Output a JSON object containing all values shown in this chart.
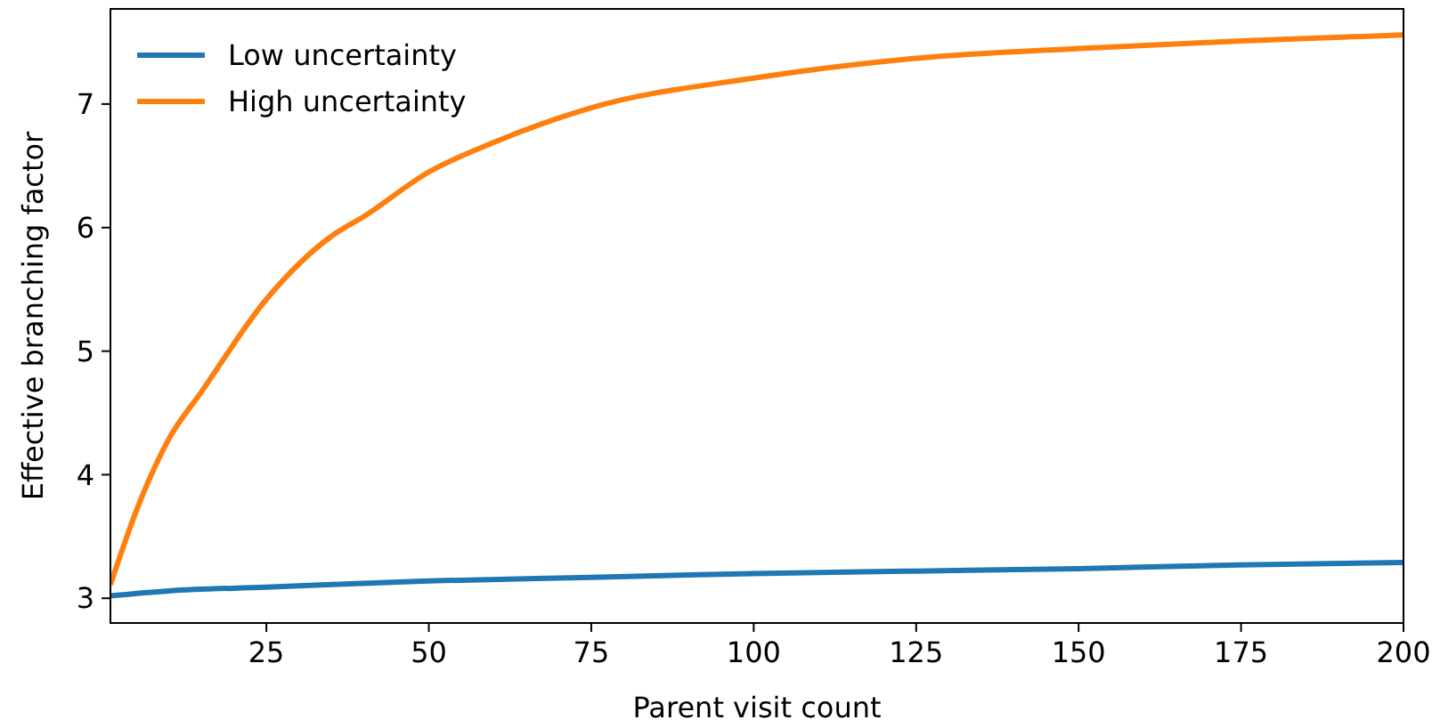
{
  "chart_data": {
    "type": "line",
    "xlabel": "Parent visit count",
    "ylabel": "Effective branching factor",
    "xlim": [
      1,
      200
    ],
    "ylim": [
      2.8,
      7.77
    ],
    "xticks": [
      25,
      50,
      75,
      100,
      125,
      150,
      175,
      200
    ],
    "yticks": [
      3,
      4,
      5,
      6,
      7
    ],
    "grid": false,
    "legend": "top left",
    "marker": "none",
    "line_style": "solid",
    "series": [
      {
        "name": "Low uncertainty",
        "color": "#1f77b4",
        "x": [
          1,
          10,
          25,
          50,
          75,
          100,
          125,
          150,
          175,
          200
        ],
        "values": [
          3.02,
          3.06,
          3.09,
          3.14,
          3.17,
          3.2,
          3.22,
          3.24,
          3.27,
          3.29
        ]
      },
      {
        "name": "High uncertainty",
        "color": "#ff7f0e",
        "x": [
          1,
          5,
          10,
          15,
          25,
          35,
          40,
          50,
          60,
          75,
          100,
          125,
          150,
          175,
          200
        ],
        "values": [
          3.11,
          3.71,
          4.29,
          4.67,
          5.42,
          5.93,
          6.09,
          6.45,
          6.69,
          6.97,
          7.21,
          7.37,
          7.45,
          7.51,
          7.56
        ]
      }
    ]
  }
}
